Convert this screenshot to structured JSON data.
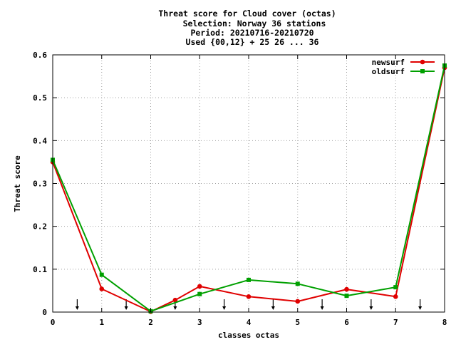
{
  "chart_data": {
    "type": "line",
    "title_lines": [
      "Threat score  for Cloud cover (octas)",
      "Selection: Norway     36 stations",
      "Period: 20210716-20210720",
      "Used {00,12} + 25 26 ... 36"
    ],
    "xlabel": "classes octas",
    "ylabel": "Threat score",
    "xlim": [
      0,
      8
    ],
    "ylim": [
      0,
      0.6
    ],
    "xticks": [
      0,
      1,
      2,
      3,
      4,
      5,
      6,
      7,
      8
    ],
    "yticks": [
      0,
      0.1,
      0.2,
      0.3,
      0.4,
      0.5,
      0.6
    ],
    "ytick_labels": [
      "0",
      "0.1",
      "0.2",
      "0.3",
      "0.4",
      "0.5",
      "0.6"
    ],
    "grid": true,
    "legend_position": "top-right",
    "arrow_markers_x": [
      0.5,
      1.5,
      2.5,
      3.5,
      4.5,
      5.5,
      6.5,
      7.5
    ],
    "x": [
      0,
      1,
      2,
      2.5,
      3,
      4,
      5,
      6,
      7,
      8
    ],
    "series": [
      {
        "name": "newsurf",
        "color": "#e00000",
        "points": [
          [
            0,
            0.35
          ],
          [
            1,
            0.054
          ],
          [
            2,
            0.001
          ],
          [
            2.5,
            0.028
          ],
          [
            3,
            0.06
          ],
          [
            4,
            0.036
          ],
          [
            5,
            0.025
          ],
          [
            6,
            0.053
          ],
          [
            7,
            0.036
          ],
          [
            8,
            0.57
          ]
        ]
      },
      {
        "name": "oldsurf",
        "color": "#00a000",
        "points": [
          [
            0,
            0.355
          ],
          [
            1,
            0.087
          ],
          [
            2,
            0.002
          ],
          [
            3,
            0.042
          ],
          [
            4,
            0.075
          ],
          [
            5,
            0.066
          ],
          [
            6,
            0.038
          ],
          [
            7,
            0.058
          ],
          [
            8,
            0.575
          ]
        ]
      }
    ]
  }
}
